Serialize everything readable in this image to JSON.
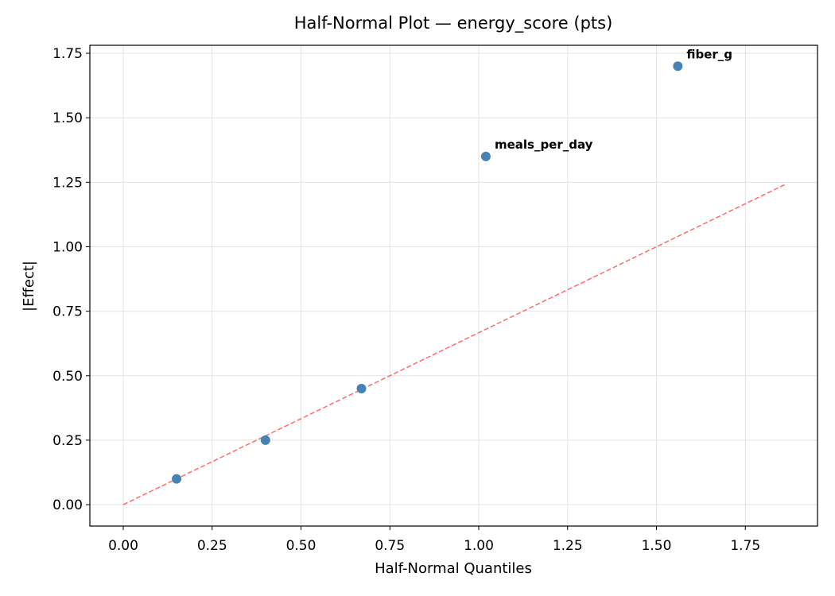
{
  "chart_data": {
    "type": "scatter",
    "title": "Half-Normal Plot — energy_score (pts)",
    "xlabel": "Half-Normal Quantiles",
    "ylabel": "|Effect|",
    "x": [
      0.15,
      0.4,
      0.67,
      1.02,
      1.56
    ],
    "y": [
      0.1,
      0.25,
      0.45,
      1.35,
      1.7
    ],
    "point_labels": [
      null,
      null,
      null,
      "meals_per_day",
      "fiber_g"
    ],
    "color": "#4682b4",
    "label_color": "#ff0000",
    "reference_line": {
      "x": [
        0,
        1.86
      ],
      "y": [
        0,
        1.24
      ],
      "color": "#ff6b6b",
      "style": "dashed"
    },
    "xlim": [
      -0.094,
      1.953
    ],
    "ylim": [
      -0.083,
      1.781
    ],
    "xticks": [
      {
        "value": 0,
        "label": "0.00"
      },
      {
        "value": 0.25,
        "label": "0.25"
      },
      {
        "value": 0.5,
        "label": "0.50"
      },
      {
        "value": 0.75,
        "label": "0.75"
      },
      {
        "value": 1,
        "label": "1.00"
      },
      {
        "value": 1.25,
        "label": "1.25"
      },
      {
        "value": 1.5,
        "label": "1.50"
      },
      {
        "value": 1.75,
        "label": "1.75"
      }
    ],
    "yticks": [
      {
        "value": 0,
        "label": "0.00"
      },
      {
        "value": 0.25,
        "label": "0.25"
      },
      {
        "value": 0.5,
        "label": "0.50"
      },
      {
        "value": 0.75,
        "label": "0.75"
      },
      {
        "value": 1,
        "label": "1.00"
      },
      {
        "value": 1.25,
        "label": "1.25"
      },
      {
        "value": 1.5,
        "label": "1.50"
      },
      {
        "value": 1.75,
        "label": "1.75"
      }
    ],
    "grid": true
  }
}
